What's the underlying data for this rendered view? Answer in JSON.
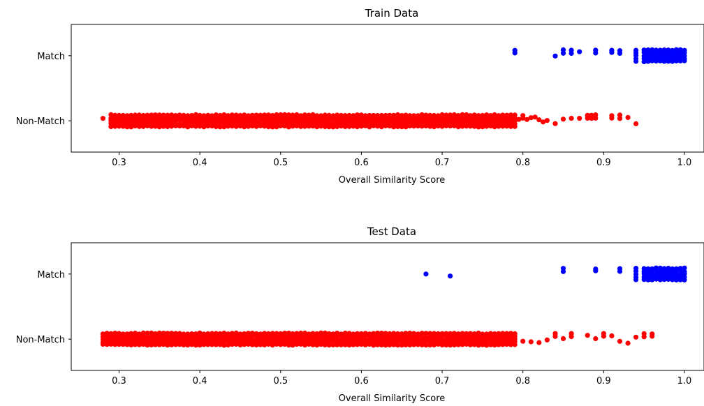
{
  "chart_data": [
    {
      "type": "scatter",
      "title": "Train Data",
      "xlabel": "Overall Similarity Score",
      "ylabel": "",
      "xlim": [
        0.24,
        1.005
      ],
      "x_ticks": [
        "0.3",
        "0.4",
        "0.5",
        "0.6",
        "0.7",
        "0.8",
        "0.9",
        "1.0"
      ],
      "categories": [
        "Non-Match",
        "Match"
      ],
      "grid": false,
      "series": [
        {
          "category": "Non-Match",
          "color": "#ff0000",
          "x_dense_range": [
            0.29,
            0.79
          ],
          "x_step": 0.005,
          "x_sparse": [
            0.28,
            0.795,
            0.8,
            0.805,
            0.81,
            0.815,
            0.82,
            0.825,
            0.83,
            0.84,
            0.85,
            0.86,
            0.87,
            0.88,
            0.885,
            0.89,
            0.91,
            0.92,
            0.93,
            0.94
          ]
        },
        {
          "category": "Match",
          "color": "#0000ff",
          "x": [
            0.79,
            0.84,
            0.85,
            0.86,
            0.87,
            0.89,
            0.91,
            0.92,
            0.94,
            0.95,
            0.955,
            0.96,
            0.965,
            0.97,
            0.975,
            0.98,
            0.985,
            0.99,
            0.995,
            1.0
          ]
        }
      ]
    },
    {
      "type": "scatter",
      "title": "Test Data",
      "xlabel": "Overall Similarity Score",
      "ylabel": "",
      "xlim": [
        0.24,
        1.005
      ],
      "x_ticks": [
        "0.3",
        "0.4",
        "0.5",
        "0.6",
        "0.7",
        "0.8",
        "0.9",
        "1.0"
      ],
      "categories": [
        "Non-Match",
        "Match"
      ],
      "grid": false,
      "series": [
        {
          "category": "Non-Match",
          "color": "#ff0000",
          "x_dense_range": [
            0.28,
            0.79
          ],
          "x_step": 0.005,
          "x_sparse": [
            0.8,
            0.81,
            0.82,
            0.83,
            0.84,
            0.85,
            0.86,
            0.88,
            0.89,
            0.9,
            0.91,
            0.92,
            0.93,
            0.94,
            0.95,
            0.96
          ]
        },
        {
          "category": "Match",
          "color": "#0000ff",
          "x": [
            0.68,
            0.71,
            0.85,
            0.89,
            0.92,
            0.94,
            0.95,
            0.955,
            0.96,
            0.965,
            0.97,
            0.975,
            0.98,
            0.985,
            0.99,
            0.995,
            1.0
          ]
        }
      ]
    }
  ]
}
